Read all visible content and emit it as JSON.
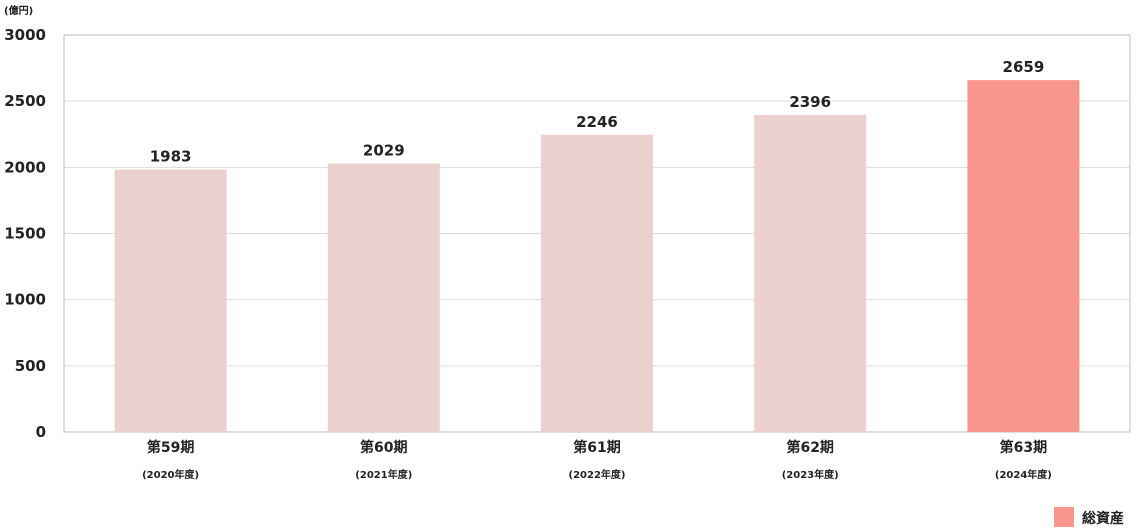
{
  "chart_data": {
    "type": "bar",
    "unit": "(億円)",
    "categories": [
      "第59期",
      "第60期",
      "第61期",
      "第62期",
      "第63期"
    ],
    "sublabels": [
      "(2020年度)",
      "(2021年度)",
      "(2022年度)",
      "(2023年度)",
      "(2024年度)"
    ],
    "series": [
      {
        "name": "総資産",
        "values": [
          1983,
          2029,
          2246,
          2396,
          2659
        ]
      }
    ],
    "ylim": [
      0,
      3000
    ],
    "yticks": [
      0,
      500,
      1000,
      1500,
      2000,
      2500,
      3000
    ],
    "grid": true,
    "legend": "bottom-right",
    "colors": {
      "bar": "#ead1ce",
      "highlight": "#f8968d",
      "grid": "#dddddd",
      "axis": "#bbbbbb"
    },
    "highlight_index": 4
  }
}
